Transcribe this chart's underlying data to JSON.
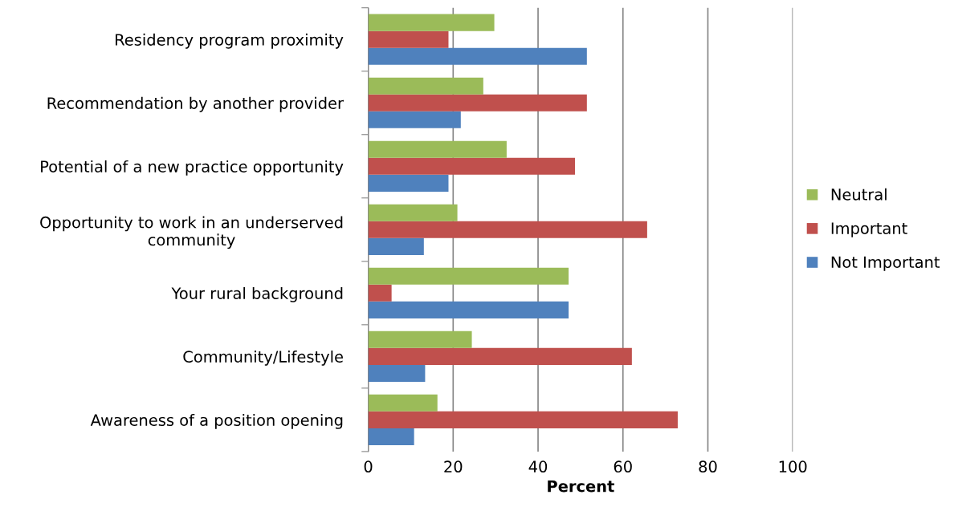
{
  "chart_data": {
    "type": "bar",
    "orientation": "horizontal",
    "xlabel": "Percent",
    "categories": [
      "Residency program proximity",
      "Recommendation by another provider",
      "Potential of a new practice opportunity",
      "Opportunity to work in an underserved\ncommunity",
      "Your rural background",
      "Community/Lifestyle",
      "Awareness of a position opening"
    ],
    "series": [
      {
        "name": "Not Important",
        "color": "#4f81bd",
        "values": [
          51.5,
          21.8,
          18.9,
          13.1,
          47.2,
          13.4,
          10.8
        ]
      },
      {
        "name": "Important",
        "color": "#c0504d",
        "values": [
          18.9,
          51.5,
          48.7,
          65.7,
          5.5,
          62.1,
          72.9
        ]
      },
      {
        "name": "Neutral",
        "color": "#9bbb59",
        "values": [
          29.7,
          27.1,
          32.6,
          21.0,
          47.2,
          24.4,
          16.3
        ]
      }
    ],
    "xlim": [
      0,
      100
    ],
    "xticks": [
      0,
      20,
      40,
      60,
      80,
      100
    ],
    "grid": "x",
    "legend": "right"
  }
}
